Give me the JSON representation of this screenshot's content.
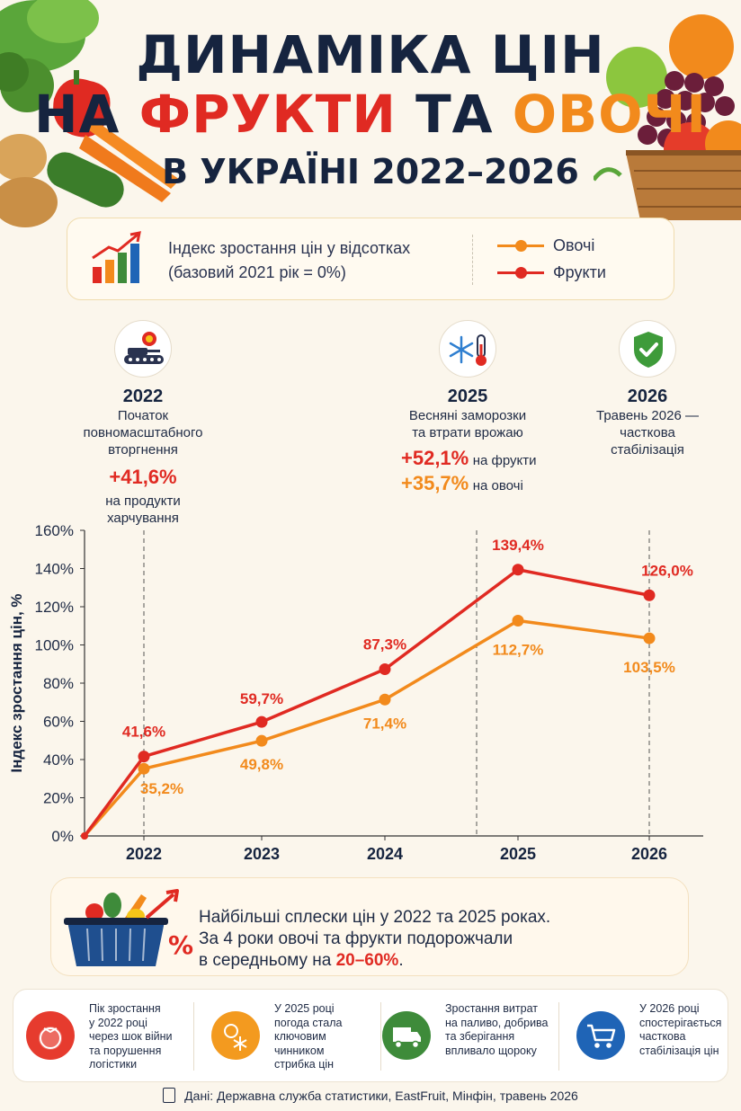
{
  "title": {
    "line1": "ДИНАМІКА ЦІН",
    "line2_prefix": "НА",
    "line2_red": "ФРУКТИ",
    "line2_mid": "ТА",
    "line2_orange": "ОВОЧІ",
    "line3": "В УКРАЇНІ 2022–2026"
  },
  "legend": {
    "description_line1": "Індекс зростання цін у відсотках",
    "description_line2": "(базовий 2021 рік = 0%)",
    "vegetables_label": "Овочі",
    "fruits_label": "Фрукти"
  },
  "colors": {
    "fruits": "#e02a22",
    "vegetables": "#f28a1c",
    "navy": "#16243f"
  },
  "events": [
    {
      "icon": "tank-explosion-icon",
      "year": "2022",
      "desc_lines": [
        "Початок",
        "повномасштабного",
        "вторгнення"
      ],
      "value": "+41,6%",
      "note_lines": [
        "на продукти",
        "харчування"
      ]
    },
    {
      "icon": "snowflake-thermometer-icon",
      "year": "2025",
      "desc_lines": [
        "Весняні заморозки",
        "та втрати врожаю"
      ],
      "fruit_value": "+52,1%",
      "fruit_note": "на фрукти",
      "veg_value": "+35,7%",
      "veg_note": "на овочі"
    },
    {
      "icon": "shield-check-icon",
      "year": "2026",
      "desc_lines": [
        "Травень 2026 —",
        "часткова",
        "стабілізація"
      ]
    }
  ],
  "chart_data": {
    "type": "line",
    "x": [
      "2021",
      "2022",
      "2023",
      "2024",
      "2025",
      "2026"
    ],
    "xtick_labels": [
      "2022",
      "2023",
      "2024",
      "2025",
      "2026"
    ],
    "ylabel": "Індекс зростання цін, %",
    "ylim": [
      0,
      160
    ],
    "yticks": [
      "0%",
      "20%",
      "40%",
      "60%",
      "80%",
      "100%",
      "120%",
      "140%",
      "160%"
    ],
    "series": [
      {
        "name": "Фрукти",
        "values": [
          0,
          41.6,
          59.7,
          87.3,
          139.4,
          126.0
        ],
        "labels": [
          "",
          "41,6%",
          "59,7%",
          "87,3%",
          "139,4%",
          "126,0%"
        ]
      },
      {
        "name": "Овочі",
        "values": [
          0,
          35.2,
          49.8,
          71.4,
          112.7,
          103.5
        ],
        "labels": [
          "",
          "35,2%",
          "49,8%",
          "71,4%",
          "112,7%",
          "103,5%"
        ]
      }
    ],
    "markers_at_years": [
      "2022",
      "2025",
      "2026"
    ]
  },
  "summary": {
    "line1": "Найбільші сплески цін у 2022 та 2025 роках.",
    "line2": "За 4 роки овочі та фрукти подорожчали",
    "line3_prefix": "в середньому на ",
    "line3_highlight": "20–60%",
    "line3_suffix": ".",
    "icon": "vegetable-basket-icon",
    "percent_symbol": "%"
  },
  "facts": [
    {
      "icon": "tomato-icon",
      "color": "#e63b2e",
      "lines": [
        "Пік зростання",
        "у 2022 році",
        "через шок війни",
        "та порушення",
        "логістики"
      ]
    },
    {
      "icon": "weather-icon",
      "color": "#f39a1f",
      "lines": [
        "У 2025 році",
        "погода стала",
        "ключовим",
        "чинником",
        "стрибка цін"
      ]
    },
    {
      "icon": "truck-icon",
      "color": "#3e8b3a",
      "lines": [
        "Зростання витрат",
        "на паливо, добрива",
        "та зберігання",
        "впливало щороку"
      ]
    },
    {
      "icon": "shopping-cart-icon",
      "color": "#1f64b6",
      "lines": [
        "У 2026 році",
        "спостерігається",
        "часткова",
        "стабілізація цін"
      ]
    }
  ],
  "source": "Дані: Державна служба статистики, EastFruit, Мінфін, травень 2026"
}
